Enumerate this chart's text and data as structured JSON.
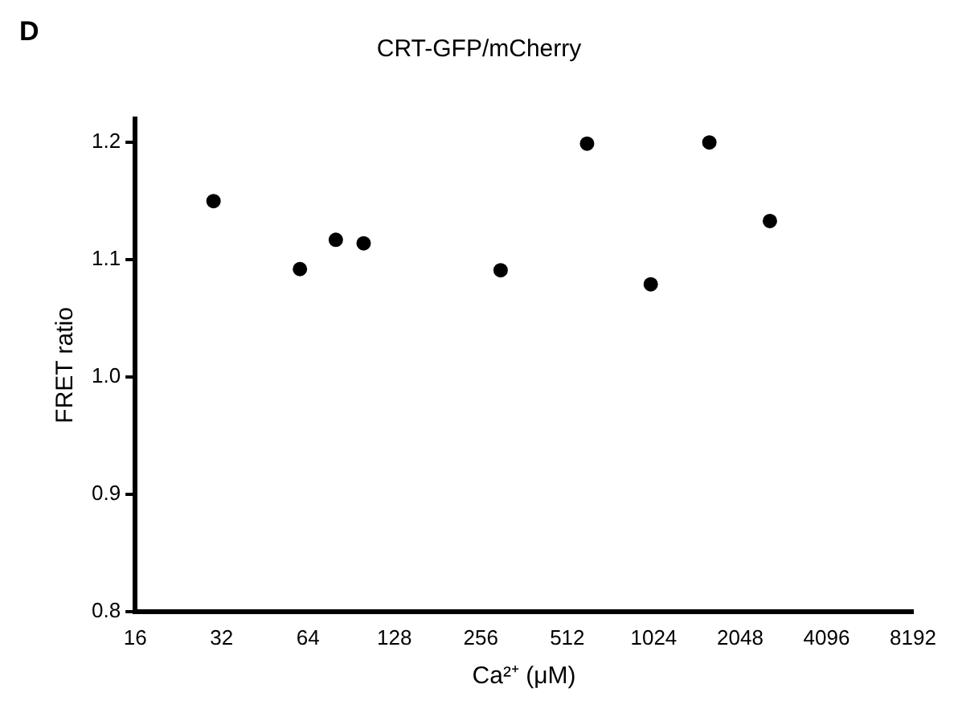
{
  "chart_data": {
    "type": "scatter",
    "title": "CRT-GFP/mCherry",
    "xlabel": "Ca²⁺ (μM)",
    "ylabel": "FRET ratio",
    "annotations": [
      "D"
    ],
    "x": [
      30,
      60,
      80,
      100,
      300,
      600,
      1000,
      1600,
      2600
    ],
    "series": [
      {
        "color": "#000000",
        "values": [
          1.15,
          1.092,
          1.117,
          1.114,
          1.091,
          1.199,
          1.079,
          1.2,
          1.133
        ]
      }
    ],
    "log": "x",
    "xlim": [
      16,
      8192
    ],
    "xticks": [
      16,
      32,
      64,
      128,
      256,
      512,
      1024,
      2048,
      4096,
      8192
    ],
    "ylim": [
      0.8,
      1.22
    ],
    "yticks": [
      0.8,
      0.9,
      {
        "value": 1.0,
        "label": "1.0"
      },
      1.1,
      1.2
    ],
    "grid": false,
    "legend": false,
    "marker": "circle"
  }
}
